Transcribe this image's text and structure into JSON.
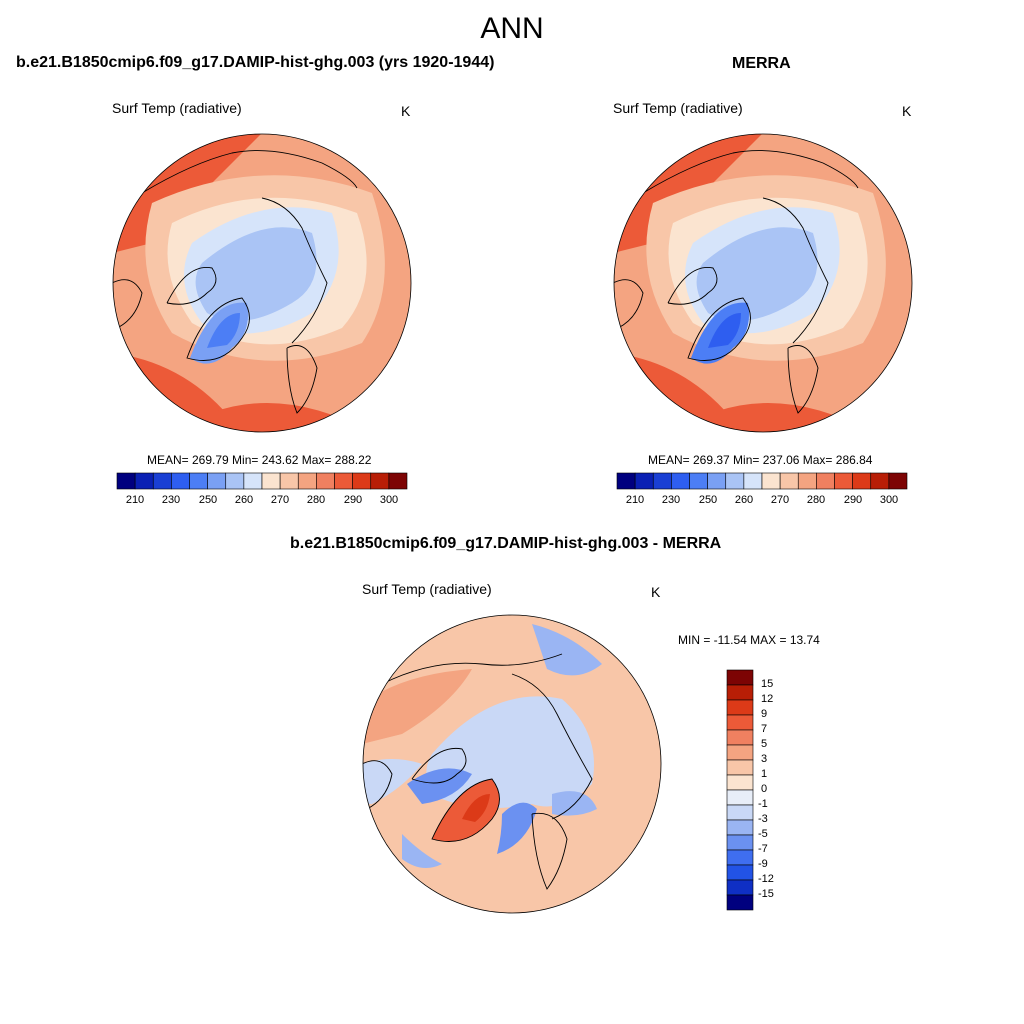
{
  "title": "ANN",
  "colors": {
    "hbar": [
      "#00007f",
      "#0a20b4",
      "#1a3fd4",
      "#2e5ef0",
      "#4c7ef5",
      "#7aa0f4",
      "#aac4f5",
      "#d6e4fa",
      "#fbe4d0",
      "#f8c6a8",
      "#f4a481",
      "#f08060",
      "#ec5a38",
      "#dc3a18",
      "#b81e06",
      "#7d0404"
    ],
    "vbar": [
      "#7d0404",
      "#b81e06",
      "#dc3a18",
      "#ec5a38",
      "#f08060",
      "#f4a481",
      "#f8c6a8",
      "#fbe4d0",
      "#e8eef8",
      "#c9d8f6",
      "#9ab5f3",
      "#6b91f1",
      "#3f6ef0",
      "#2253e6",
      "#0f2fc4",
      "#00007f"
    ],
    "land": "#000000"
  },
  "chart_data": [
    {
      "type": "heatmap",
      "projection": "north-polar-stereographic",
      "title": "b.e21.B1850cmip6.f09_g17.DAMIP-hist-ghg.003 (yrs 1920-1944)",
      "variable": "Surf Temp (radiative)",
      "units": "K",
      "stats": "MEAN= 269.79  Min= 243.62  Max= 288.22",
      "mean": 269.79,
      "min": 243.62,
      "max": 288.22,
      "colorbar_ticks": [
        "210",
        "230",
        "250",
        "260",
        "270",
        "280",
        "290",
        "300"
      ]
    },
    {
      "type": "heatmap",
      "projection": "north-polar-stereographic",
      "title": "MERRA",
      "variable": "Surf Temp (radiative)",
      "units": "K",
      "stats": "MEAN= 269.37  Min= 237.06  Max= 286.84",
      "mean": 269.37,
      "min": 237.06,
      "max": 286.84,
      "colorbar_ticks": [
        "210",
        "230",
        "250",
        "260",
        "270",
        "280",
        "290",
        "300"
      ]
    },
    {
      "type": "heatmap",
      "projection": "north-polar-stereographic",
      "title": "b.e21.B1850cmip6.f09_g17.DAMIP-hist-ghg.003 - MERRA",
      "variable": "Surf Temp (radiative)",
      "units": "K",
      "stats": "MIN = -11.54 MAX =  13.74",
      "min": -11.54,
      "max": 13.74,
      "colorbar_ticks": [
        "15",
        "12",
        "9",
        "7",
        "5",
        "3",
        "1",
        "0",
        "-1",
        "-3",
        "-5",
        "-7",
        "-9",
        "-12",
        "-15"
      ]
    }
  ]
}
